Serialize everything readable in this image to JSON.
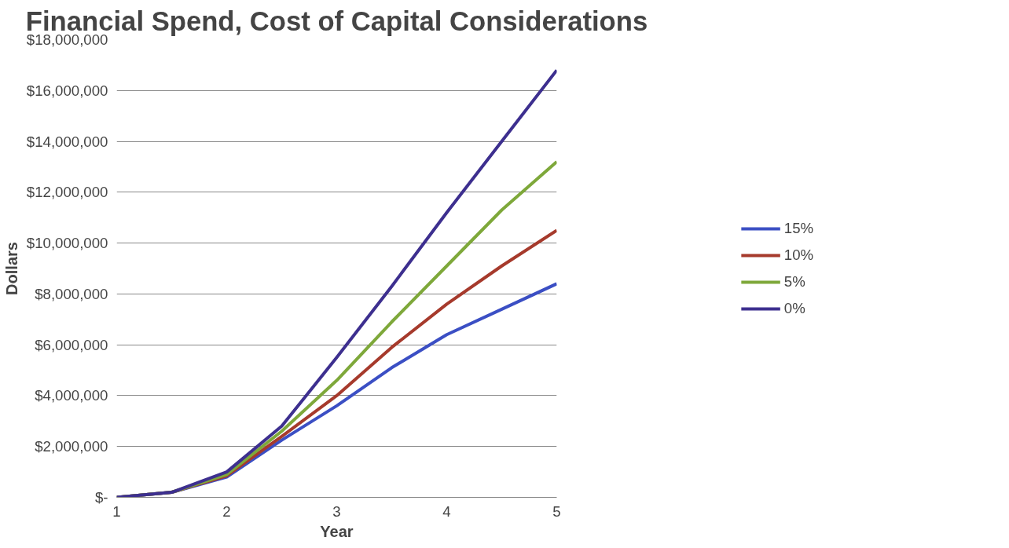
{
  "chart_data": {
    "type": "line",
    "title": "Financial Spend, Cost of Capital Considerations",
    "xlabel": "Year",
    "ylabel": "Dollars",
    "x": [
      1,
      1.5,
      2,
      2.5,
      3,
      3.5,
      4,
      4.5,
      5
    ],
    "series": [
      {
        "name": "15%",
        "color": "#3b4fc4",
        "values": [
          0,
          200000,
          800000,
          2250000,
          3600000,
          5100000,
          6400000,
          7400000,
          8400000
        ]
      },
      {
        "name": "10%",
        "color": "#a63a2c",
        "values": [
          0,
          200000,
          850000,
          2400000,
          4000000,
          5900000,
          7600000,
          9100000,
          10500000
        ]
      },
      {
        "name": "5%",
        "color": "#7ea83a",
        "values": [
          0,
          200000,
          900000,
          2600000,
          4600000,
          6900000,
          9100000,
          11300000,
          13200000
        ]
      },
      {
        "name": "0%",
        "color": "#3d2f8f",
        "values": [
          0,
          200000,
          1000000,
          2800000,
          5500000,
          8300000,
          11200000,
          14000000,
          16800000
        ]
      }
    ],
    "xlim": [
      1,
      5
    ],
    "xticks": [
      1,
      2,
      3,
      4,
      5
    ],
    "ylim": [
      0,
      18000000
    ],
    "yticks": [
      {
        "value": 0,
        "label": "$-"
      },
      {
        "value": 2000000,
        "label": "$2,000,000"
      },
      {
        "value": 4000000,
        "label": "$4,000,000"
      },
      {
        "value": 6000000,
        "label": "$6,000,000"
      },
      {
        "value": 8000000,
        "label": "$8,000,000"
      },
      {
        "value": 10000000,
        "label": "$10,000,000"
      },
      {
        "value": 12000000,
        "label": "$12,000,000"
      },
      {
        "value": 14000000,
        "label": "$14,000,000"
      },
      {
        "value": 16000000,
        "label": "$16,000,000"
      },
      {
        "value": 18000000,
        "label": "$18,000,000"
      }
    ],
    "grid": "y",
    "legend": "right",
    "marker": "none",
    "line_style": "solid"
  }
}
